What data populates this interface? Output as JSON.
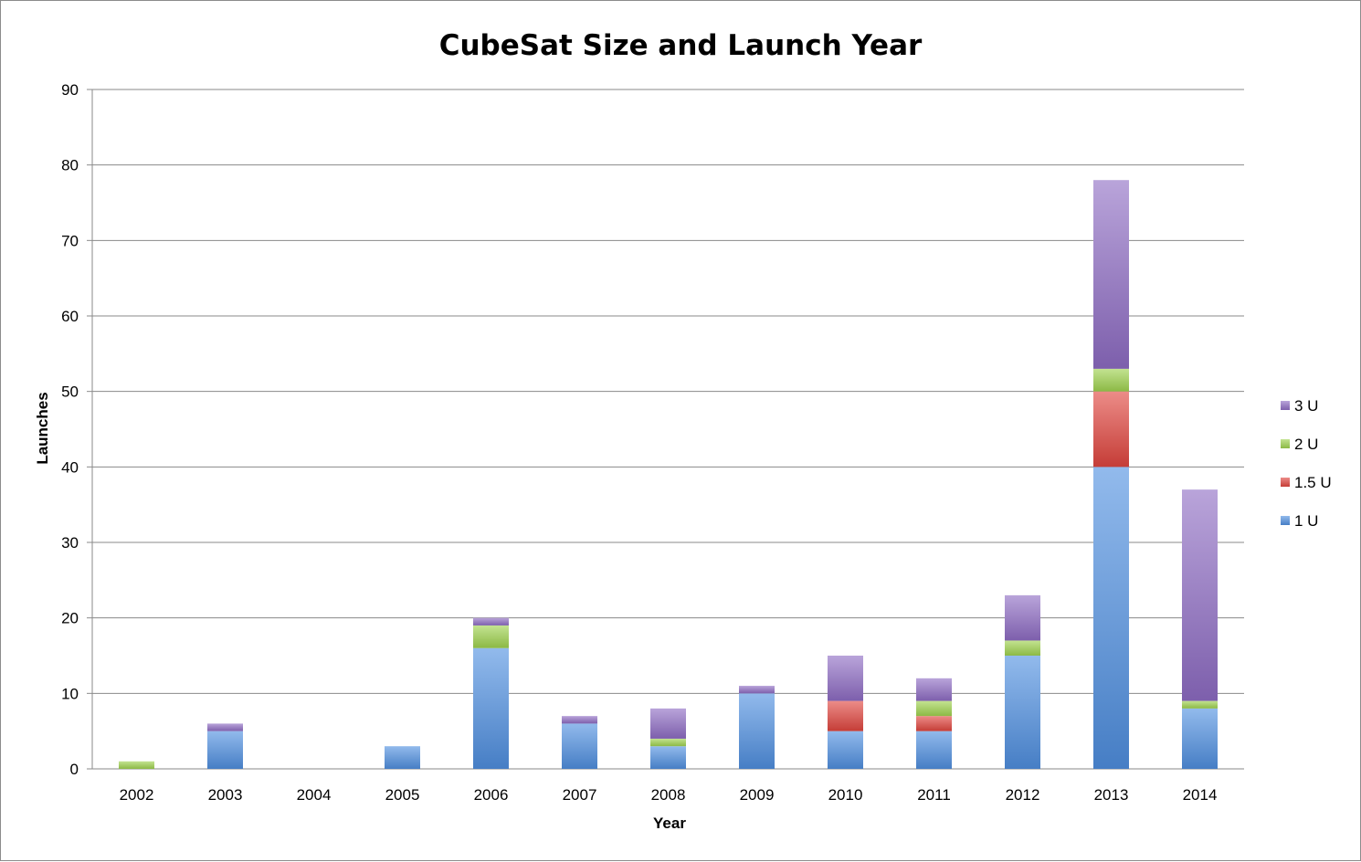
{
  "chart_data": {
    "type": "bar",
    "stacked": true,
    "title": "CubeSat Size and Launch Year",
    "xlabel": "Year",
    "ylabel": "Launches",
    "categories": [
      "2002",
      "2003",
      "2004",
      "2005",
      "2006",
      "2007",
      "2008",
      "2009",
      "2010",
      "2011",
      "2012",
      "2013",
      "2014"
    ],
    "ylim": [
      0,
      90
    ],
    "yticks": [
      0,
      10,
      20,
      30,
      40,
      50,
      60,
      70,
      80,
      90
    ],
    "grid": true,
    "legend_position": "right",
    "legend_order": [
      "3 U",
      "2 U",
      "1.5 U",
      "1 U"
    ],
    "series": [
      {
        "name": "1 U",
        "color": "#4f8fe0",
        "values": [
          0,
          5,
          0,
          3,
          16,
          6,
          3,
          10,
          5,
          5,
          15,
          40,
          8
        ]
      },
      {
        "name": "1.5 U",
        "color": "#e0453f",
        "values": [
          0,
          0,
          0,
          0,
          0,
          0,
          0,
          0,
          4,
          2,
          0,
          10,
          0
        ]
      },
      {
        "name": "2 U",
        "color": "#9fd24e",
        "values": [
          1,
          0,
          0,
          0,
          3,
          0,
          1,
          0,
          0,
          2,
          2,
          3,
          1
        ]
      },
      {
        "name": "3 U",
        "color": "#8e6cc4",
        "values": [
          0,
          1,
          0,
          0,
          1,
          1,
          4,
          1,
          6,
          3,
          6,
          25,
          28
        ]
      }
    ]
  }
}
